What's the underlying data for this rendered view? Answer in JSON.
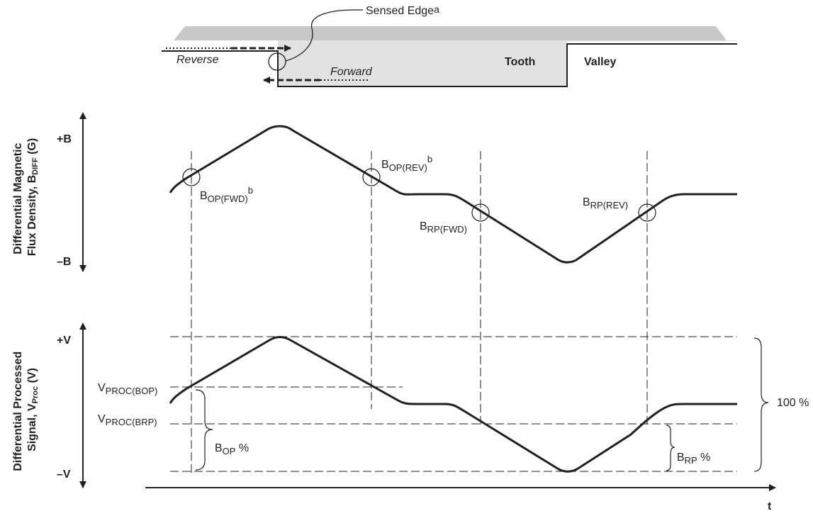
{
  "target": {
    "sensed_edge": "Sensed Edge",
    "sensed_edge_note": "a",
    "reverse": "Reverse",
    "forward": "Forward",
    "tooth": "Tooth",
    "valley": "Valley"
  },
  "magnetic_plot": {
    "ylabel_line1": "Differential Magnetic",
    "ylabel_line2_prefix": "Flux Density, B",
    "ylabel_line2_sub": "DIFF",
    "ylabel_line2_suffix": " (G)",
    "top_label": "+B",
    "bottom_label": "–B",
    "bop_fwd": {
      "main": "B",
      "sub": "OP(FWD)",
      "note": "b"
    },
    "bop_rev": {
      "main": "B",
      "sub": "OP(REV)",
      "note": "b"
    },
    "brp_fwd": {
      "main": "B",
      "sub": "RP(FWD)"
    },
    "brp_rev": {
      "main": "B",
      "sub": "RP(REV)"
    }
  },
  "processed_plot": {
    "ylabel_line1": "Differential Processed",
    "ylabel_line2_prefix": "Signal, V",
    "ylabel_line2_sub": "Proc",
    "ylabel_line2_suffix": " (V)",
    "top_label": "+V",
    "bottom_label": "–V",
    "vproc_bop": {
      "main": "V",
      "sub": "PROC(BOP)"
    },
    "vproc_brp": {
      "main": "V",
      "sub": "PROC(BRP)"
    },
    "bop_pct": {
      "main": "B",
      "sub": "OP",
      "suffix": " %"
    },
    "brp_pct": {
      "main": "B",
      "sub": "RP",
      "suffix": " %"
    },
    "hundred_pct": "100 %"
  },
  "time_axis": {
    "label": "t"
  },
  "colors": {
    "ink": "#231f20",
    "tooth_fill": "#dcdcdc",
    "target_top": "#c8c8c8"
  }
}
